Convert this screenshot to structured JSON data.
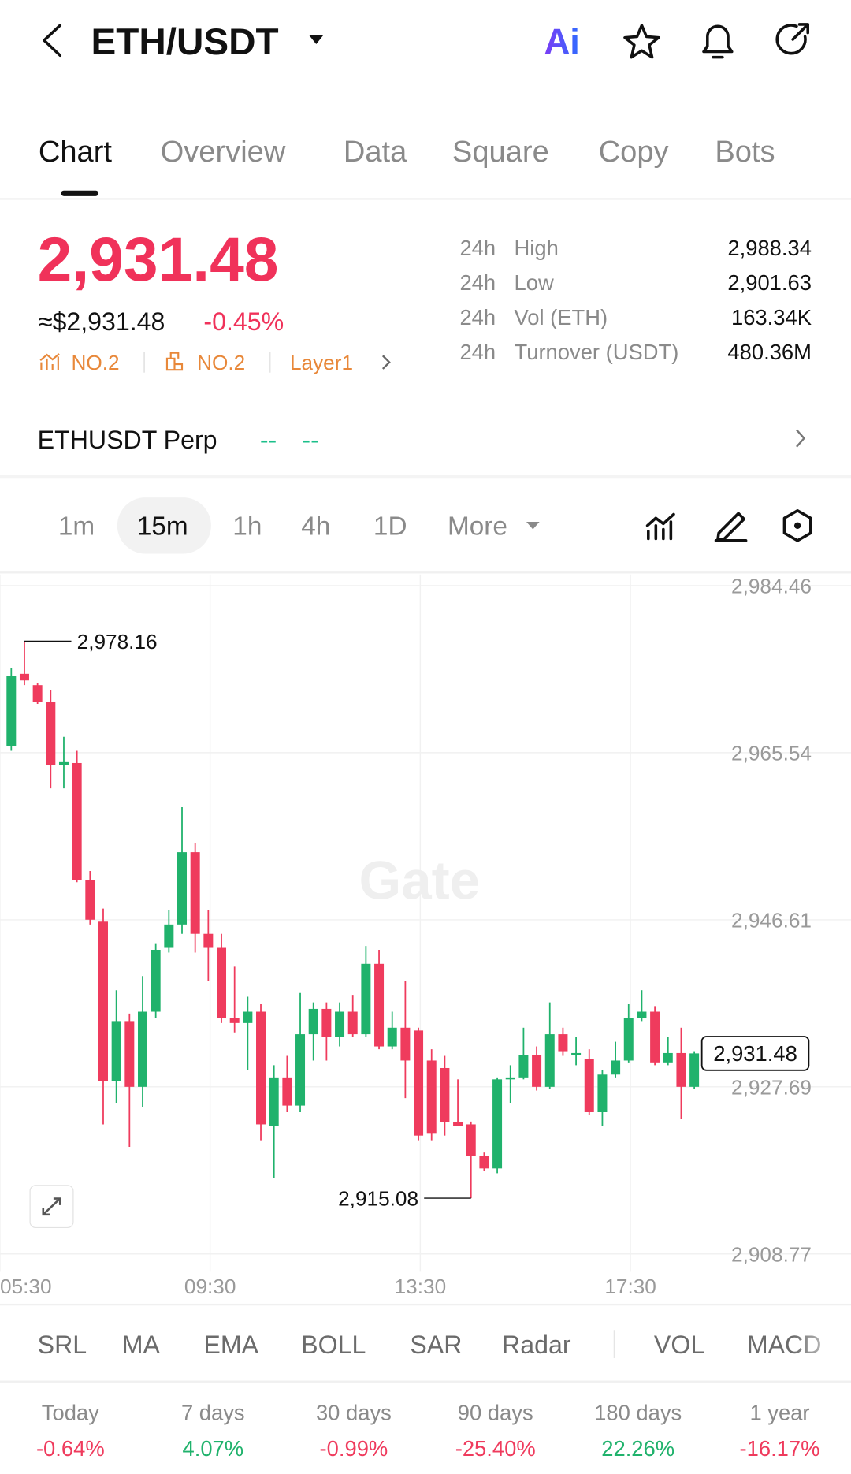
{
  "header": {
    "title": "ETH/USDT",
    "ai_icon": "Ai"
  },
  "tabs": [
    "Chart",
    "Overview",
    "Data",
    "Square",
    "Copy",
    "Bots"
  ],
  "ticker": {
    "price": "2,931.48",
    "usd_price": "≈$2,931.48",
    "change": "-0.45%",
    "badges": [
      "NO.2",
      "NO.2",
      "Layer1"
    ]
  },
  "stats": [
    {
      "period": "24h",
      "label": "High",
      "value": "2,988.34"
    },
    {
      "period": "24h",
      "label": "Low",
      "value": "2,901.63"
    },
    {
      "period": "24h",
      "label": "Vol (ETH)",
      "value": "163.34K"
    },
    {
      "period": "24h",
      "label": "Turnover (USDT)",
      "value": "480.36M"
    }
  ],
  "perp": {
    "label": "ETHUSDT Perp",
    "price": "--",
    "change": "--"
  },
  "intervals": [
    "1m",
    "15m",
    "1h",
    "4h",
    "1D",
    "More"
  ],
  "chart_data": {
    "type": "candlestick",
    "watermark": "Gate",
    "up_color": "#20b26c",
    "down_color": "#ef3b5d",
    "grid": true,
    "xlim": [
      -0.857,
      63.93
    ],
    "xticks": [
      {
        "value": -0.86,
        "label": "05:30"
      },
      {
        "value": 15.14,
        "label": "09:30"
      },
      {
        "value": 31.14,
        "label": "13:30"
      },
      {
        "value": 47.14,
        "label": "17:30"
      }
    ],
    "ylim": [
      2906.75,
      2985.73
    ],
    "yticks": [
      {
        "value": 2984.46,
        "label": "2,984.46"
      },
      {
        "value": 2965.54,
        "label": "2,965.54"
      },
      {
        "value": 2946.61,
        "label": "2,946.61"
      },
      {
        "value": 2927.69,
        "label": "2,927.69"
      },
      {
        "value": 2908.77,
        "label": "2,908.77"
      }
    ],
    "open": [
      2966.28,
      2974.47,
      2973.19,
      2971.28,
      2964.16,
      2964.37,
      2951.08,
      2946.4,
      2928.33,
      2935.14,
      2927.69,
      2936.2,
      2943.43,
      2946.08,
      2954.27,
      2945.02,
      2943.43,
      2935.45,
      2934.92,
      2936.2,
      2923.23,
      2928.76,
      2925.57,
      2933.65,
      2936.52,
      2933.33,
      2936.2,
      2933.65,
      2941.62,
      2932.27,
      2934.39,
      2934.07,
      2930.67,
      2929.82,
      2923.66,
      2923.44,
      2919.83,
      2918.45,
      2928.54,
      2928.76,
      2931.31,
      2927.69,
      2933.65,
      2931.31,
      2930.88,
      2924.82,
      2929.08,
      2930.67,
      2935.45,
      2936.2,
      2930.46,
      2931.52,
      2927.69
    ],
    "high": [
      2975.1,
      2978.16,
      2973.4,
      2972.66,
      2967.34,
      2965.75,
      2952.14,
      2947.89,
      2938.64,
      2935.99,
      2940.24,
      2943.96,
      2947.68,
      2959.37,
      2955.33,
      2947.68,
      2945.02,
      2941.3,
      2937.9,
      2937.05,
      2930.14,
      2931.2,
      2938.32,
      2937.26,
      2937.26,
      2937.26,
      2938.11,
      2943.64,
      2943.21,
      2936.2,
      2939.71,
      2934.39,
      2931.95,
      2931.2,
      2928.54,
      2923.76,
      2920.25,
      2928.76,
      2930.14,
      2934.39,
      2932.27,
      2937.26,
      2934.39,
      2933.33,
      2931.95,
      2929.61,
      2932.8,
      2937.05,
      2938.64,
      2936.84,
      2933.33,
      2934.39,
      2931.73
    ],
    "low": [
      2965.75,
      2973.19,
      2971.06,
      2961.5,
      2961.5,
      2950.87,
      2946.08,
      2923.44,
      2925.89,
      2920.89,
      2925.36,
      2935.45,
      2942.9,
      2945.02,
      2942.9,
      2939.71,
      2934.92,
      2933.86,
      2929.61,
      2921.64,
      2917.38,
      2924.82,
      2924.82,
      2930.67,
      2930.67,
      2932.27,
      2933.33,
      2933.33,
      2931.95,
      2931.95,
      2926.42,
      2921.64,
      2921.64,
      2922.17,
      2923.23,
      2915.08,
      2918.13,
      2917.91,
      2925.89,
      2928.54,
      2927.27,
      2927.48,
      2931.2,
      2930.14,
      2924.51,
      2923.23,
      2928.76,
      2930.46,
      2935.14,
      2930.14,
      2930.14,
      2924.08,
      2927.48
    ],
    "close": [
      2974.25,
      2973.72,
      2971.28,
      2964.16,
      2964.47,
      2951.08,
      2946.62,
      2928.33,
      2935.14,
      2927.69,
      2936.2,
      2943.21,
      2946.08,
      2954.27,
      2945.02,
      2943.43,
      2935.45,
      2934.92,
      2936.2,
      2923.44,
      2928.76,
      2925.57,
      2933.65,
      2936.52,
      2933.33,
      2936.2,
      2933.65,
      2941.62,
      2932.27,
      2934.39,
      2930.67,
      2922.17,
      2922.38,
      2923.66,
      2923.23,
      2919.83,
      2918.45,
      2928.54,
      2928.76,
      2931.31,
      2927.69,
      2933.65,
      2931.73,
      2931.52,
      2924.82,
      2929.08,
      2930.67,
      2935.45,
      2936.2,
      2930.46,
      2931.52,
      2927.69,
      2931.48
    ],
    "high_marker": {
      "value": 2978.16,
      "label": "2,978.16"
    },
    "low_marker": {
      "value": 2915.08,
      "label": "2,915.08"
    },
    "last_price_marker": {
      "value": 2931.48,
      "label": "2,931.48"
    }
  },
  "indicators": [
    "SRL",
    "MA",
    "EMA",
    "BOLL",
    "SAR",
    "Radar",
    "VOL",
    "MACD"
  ],
  "returns": [
    {
      "label": "Today",
      "value": "-0.64%"
    },
    {
      "label": "7 days",
      "value": "4.07%"
    },
    {
      "label": "30 days",
      "value": "-0.99%"
    },
    {
      "label": "90 days",
      "value": "-25.40%"
    },
    {
      "label": "180 days",
      "value": "22.26%"
    },
    {
      "label": "1 year",
      "value": "-16.17%"
    }
  ]
}
